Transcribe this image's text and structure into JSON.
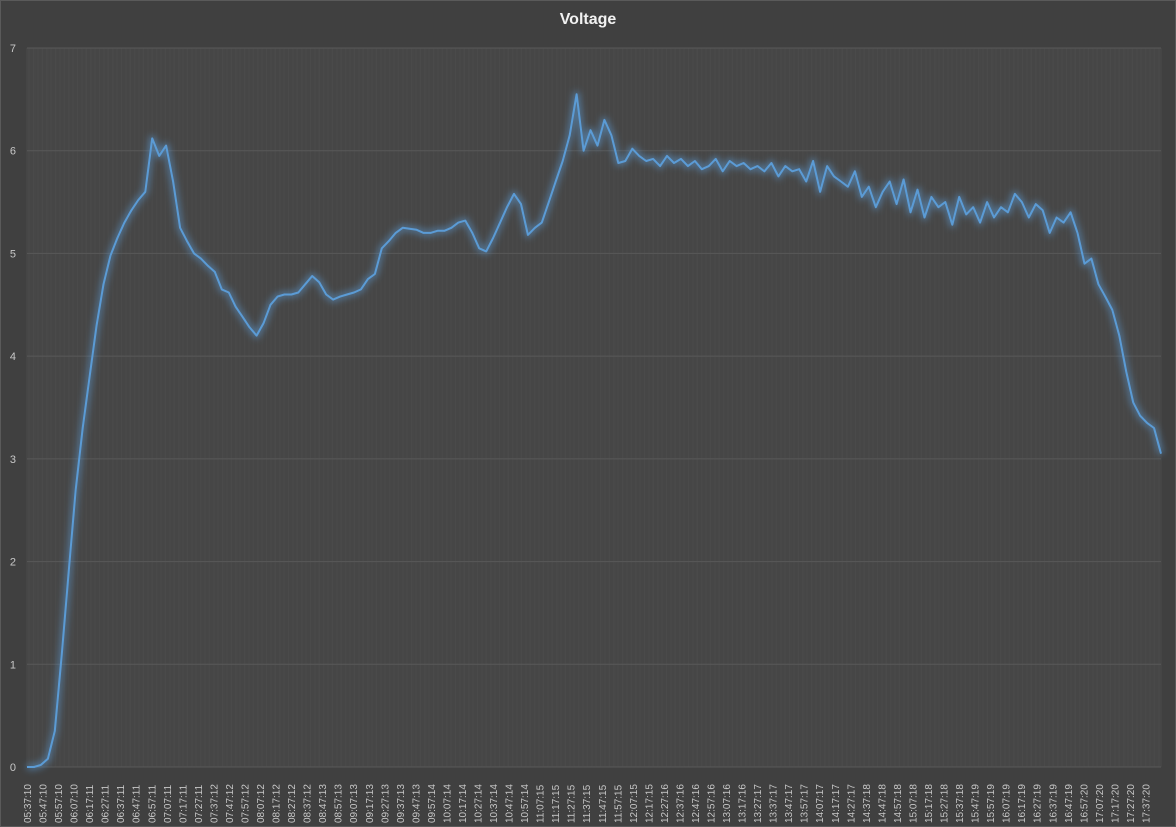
{
  "chart_data": {
    "type": "line",
    "title": "Voltage",
    "xlabel": "",
    "ylabel": "",
    "ylim": [
      0,
      7
    ],
    "y_ticks": [
      0,
      1,
      2,
      3,
      4,
      5,
      6,
      7
    ],
    "grid": true,
    "legend": "none",
    "colors": {
      "background": "#404040",
      "line": "#5b9bd5",
      "glow": "#5b9bd5",
      "gridline": "#595959"
    },
    "x_tick_labels": [
      "05:37:10",
      "05:47:10",
      "05:57:10",
      "06:07:10",
      "06:17:11",
      "06:27:11",
      "06:37:11",
      "06:47:11",
      "06:57:11",
      "07:07:11",
      "07:17:11",
      "07:27:11",
      "07:37:12",
      "07:47:12",
      "07:57:12",
      "08:07:12",
      "08:17:12",
      "08:27:12",
      "08:37:12",
      "08:47:13",
      "08:57:13",
      "09:07:13",
      "09:17:13",
      "09:27:13",
      "09:37:13",
      "09:47:13",
      "09:57:14",
      "10:07:14",
      "10:17:14",
      "10:27:14",
      "10:37:14",
      "10:47:14",
      "10:57:14",
      "11:07:15",
      "11:17:15",
      "11:27:15",
      "11:37:15",
      "11:47:15",
      "11:57:15",
      "12:07:15",
      "12:17:15",
      "12:27:16",
      "12:37:16",
      "12:47:16",
      "12:57:16",
      "13:07:16",
      "13:17:16",
      "13:27:17",
      "13:37:17",
      "13:47:17",
      "13:57:17",
      "14:07:17",
      "14:17:17",
      "14:27:17",
      "14:37:18",
      "14:47:18",
      "14:57:18",
      "15:07:18",
      "15:17:18",
      "15:27:18",
      "15:37:18",
      "15:47:19",
      "15:57:19",
      "16:07:19",
      "16:17:19",
      "16:27:19",
      "16:37:19",
      "16:47:19",
      "16:57:20",
      "17:07:20",
      "17:17:20",
      "17:27:20",
      "17:37:20"
    ],
    "series": [
      {
        "values": [
          0.0,
          0.0,
          0.02,
          0.08,
          0.35,
          1.1,
          1.9,
          2.7,
          3.3,
          3.8,
          4.3,
          4.7,
          4.98,
          5.15,
          5.3,
          5.42,
          5.52,
          5.6,
          6.12,
          5.95,
          6.05,
          5.7,
          5.25,
          5.12,
          5.0,
          4.95,
          4.88,
          4.82,
          4.65,
          4.62,
          4.48,
          4.38,
          4.28,
          4.2,
          4.32,
          4.5,
          4.58,
          4.6,
          4.6,
          4.62,
          4.7,
          4.78,
          4.72,
          4.6,
          4.55,
          4.58,
          4.6,
          4.62,
          4.65,
          4.75,
          4.8,
          5.05,
          5.12,
          5.2,
          5.25,
          5.24,
          5.23,
          5.2,
          5.2,
          5.22,
          5.22,
          5.25,
          5.3,
          5.32,
          5.2,
          5.05,
          5.02,
          5.15,
          5.3,
          5.45,
          5.58,
          5.48,
          5.18,
          5.25,
          5.3,
          5.5,
          5.7,
          5.9,
          6.15,
          6.55,
          6.0,
          6.2,
          6.05,
          6.3,
          6.15,
          5.88,
          5.9,
          6.02,
          5.95,
          5.9,
          5.92,
          5.85,
          5.95,
          5.88,
          5.92,
          5.85,
          5.9,
          5.82,
          5.85,
          5.92,
          5.8,
          5.9,
          5.85,
          5.88,
          5.82,
          5.85,
          5.8,
          5.88,
          5.75,
          5.85,
          5.8,
          5.82,
          5.7,
          5.9,
          5.6,
          5.85,
          5.75,
          5.7,
          5.65,
          5.8,
          5.55,
          5.65,
          5.45,
          5.6,
          5.7,
          5.48,
          5.72,
          5.4,
          5.62,
          5.35,
          5.55,
          5.45,
          5.5,
          5.28,
          5.55,
          5.38,
          5.45,
          5.3,
          5.5,
          5.35,
          5.45,
          5.4,
          5.58,
          5.5,
          5.35,
          5.48,
          5.42,
          5.2,
          5.35,
          5.3,
          5.4,
          5.2,
          4.9,
          4.95,
          4.7,
          4.58,
          4.45,
          4.2,
          3.85,
          3.55,
          3.42,
          3.35,
          3.3,
          3.05
        ]
      }
    ]
  }
}
